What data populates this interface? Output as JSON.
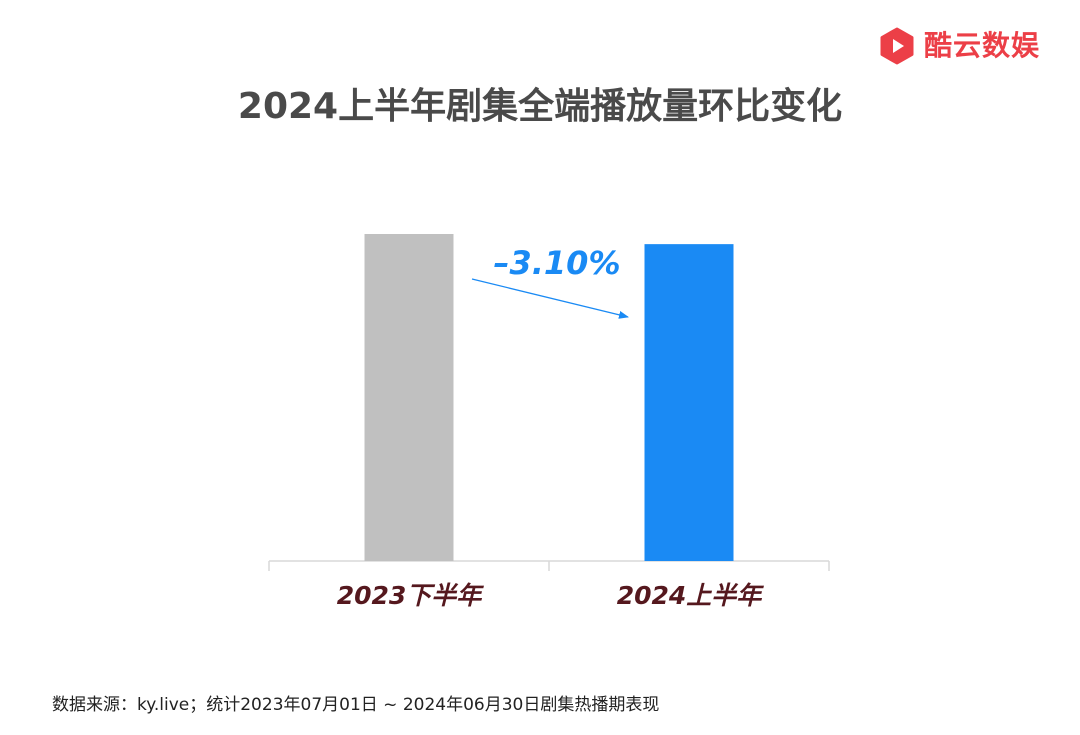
{
  "brand": {
    "name": "酷云数娱",
    "logo_icon": "play-icon",
    "color": "#ec3f47"
  },
  "chart_data": {
    "type": "bar",
    "title": "2024上半年剧集全端播放量环比变化",
    "categories": [
      "2023下半年",
      "2024上半年"
    ],
    "values": [
      100,
      96.9
    ],
    "bar_colors": [
      "#c0c0c0",
      "#1a8af4"
    ],
    "change": "–3.10%",
    "change_color": "#1a8af4",
    "xlabel": "",
    "ylabel": "",
    "ylim": [
      0,
      100
    ],
    "grid": false,
    "legend": "none"
  },
  "footer": {
    "source": "数据来源：ky.live；统计2023年07月01日 ~  2024年06月30日剧集热播期表现"
  }
}
